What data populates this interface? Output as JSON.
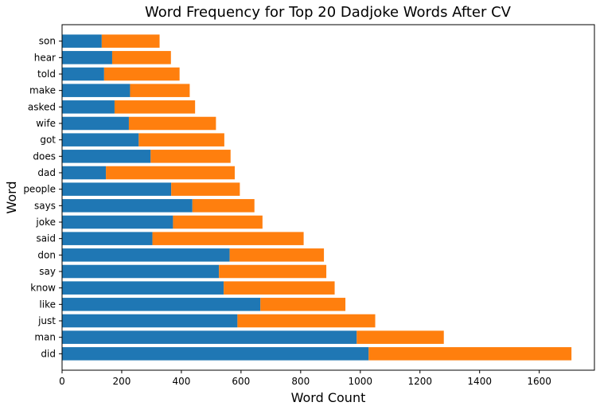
{
  "chart_data": {
    "type": "bar",
    "orientation": "horizontal",
    "stacked": true,
    "title": "Word Frequency for Top 20 Dadjoke Words After CV",
    "xlabel": "Word Count",
    "ylabel": "Word",
    "xlim": [
      0,
      1785
    ],
    "xticks": [
      0,
      200,
      400,
      600,
      800,
      1000,
      1200,
      1400,
      1600
    ],
    "grid": false,
    "categories": [
      "did",
      "man",
      "just",
      "like",
      "know",
      "say",
      "don",
      "said",
      "joke",
      "says",
      "people",
      "dad",
      "does",
      "got",
      "wife",
      "asked",
      "make",
      "told",
      "hear",
      "son"
    ],
    "series": [
      {
        "color": "#1f77b4",
        "values": [
          1028,
          988,
          588,
          665,
          542,
          526,
          562,
          303,
          372,
          437,
          366,
          147,
          297,
          257,
          224,
          176,
          228,
          141,
          168,
          133
        ]
      },
      {
        "color": "#ff7f0e",
        "values": [
          680,
          292,
          462,
          285,
          372,
          360,
          316,
          507,
          300,
          208,
          230,
          432,
          268,
          287,
          292,
          270,
          200,
          253,
          197,
          194
        ]
      }
    ]
  }
}
